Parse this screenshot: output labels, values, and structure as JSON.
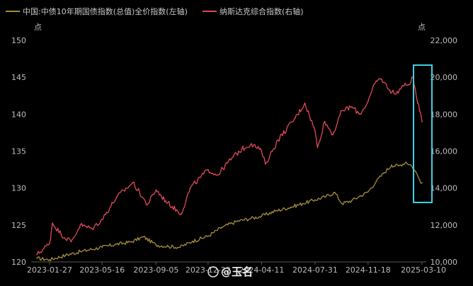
{
  "chart_data": {
    "type": "line",
    "title": "",
    "legend_placement": "top-left",
    "grid": false,
    "left_axis": {
      "unit": "点",
      "ylim": [
        120,
        150
      ],
      "ticks": [
        "120",
        "125",
        "130",
        "135",
        "140",
        "145",
        "150"
      ]
    },
    "right_axis": {
      "unit": "点",
      "ylim": [
        10000,
        22000
      ],
      "ticks": [
        "10,000",
        "12,000",
        "14,000",
        "16,000",
        "18,000",
        "20,000",
        "22,000"
      ]
    },
    "x_ticks": [
      "2023-01-27",
      "2023-05-16",
      "2023-09-05",
      "2023-12-22",
      "2024-04-11",
      "2024-07-31",
      "2024-11-18",
      "2025-03-10"
    ],
    "series": [
      {
        "name": "中国:中债10年期国债指数(总值)全价指数(左轴)",
        "axis": "left",
        "color": "#a38d3c",
        "x": [
          "2023-01-01",
          "2023-01-27",
          "2023-03-01",
          "2023-04-01",
          "2023-05-16",
          "2023-06-15",
          "2023-07-15",
          "2023-08-10",
          "2023-09-05",
          "2023-10-01",
          "2023-10-25",
          "2023-11-20",
          "2023-12-22",
          "2024-01-20",
          "2024-02-20",
          "2024-03-20",
          "2024-04-11",
          "2024-05-10",
          "2024-06-10",
          "2024-07-05",
          "2024-07-31",
          "2024-08-20",
          "2024-09-10",
          "2024-09-25",
          "2024-10-15",
          "2024-11-01",
          "2024-11-18",
          "2024-12-05",
          "2024-12-20",
          "2025-01-06",
          "2025-01-20",
          "2025-02-05",
          "2025-02-15",
          "2025-02-25",
          "2025-03-05",
          "2025-03-10"
        ],
        "values": [
          120.5,
          120.3,
          120.9,
          121.4,
          122.0,
          122.4,
          122.7,
          123.4,
          122.3,
          122.1,
          122.0,
          122.8,
          123.5,
          124.7,
          125.5,
          125.9,
          126.2,
          126.9,
          127.4,
          127.9,
          128.4,
          128.8,
          129.4,
          127.9,
          128.3,
          128.9,
          129.5,
          130.9,
          132.0,
          133.1,
          133.0,
          133.5,
          133.1,
          132.2,
          131.1,
          130.7
        ]
      },
      {
        "name": "纳斯达克综合指数(右轴)",
        "axis": "right",
        "color": "#e0495a",
        "x": [
          "2023-01-01",
          "2023-01-27",
          "2023-02-02",
          "2023-02-20",
          "2023-03-13",
          "2023-04-01",
          "2023-04-25",
          "2023-05-16",
          "2023-06-15",
          "2023-07-19",
          "2023-08-18",
          "2023-09-05",
          "2023-09-25",
          "2023-10-27",
          "2023-11-15",
          "2023-12-22",
          "2024-01-10",
          "2024-02-12",
          "2024-03-01",
          "2024-03-21",
          "2024-04-11",
          "2024-04-19",
          "2024-05-15",
          "2024-06-20",
          "2024-07-10",
          "2024-07-31",
          "2024-08-05",
          "2024-08-20",
          "2024-09-06",
          "2024-09-25",
          "2024-10-15",
          "2024-11-01",
          "2024-11-18",
          "2024-12-05",
          "2024-12-16",
          "2025-01-02",
          "2025-01-15",
          "2025-01-27",
          "2025-02-10",
          "2025-02-19",
          "2025-03-01",
          "2025-03-05",
          "2025-03-10"
        ],
        "values": [
          10400,
          11000,
          12100,
          11500,
          11100,
          12000,
          11800,
          12300,
          13500,
          14300,
          13100,
          13900,
          13300,
          12600,
          14000,
          15000,
          14700,
          15700,
          16100,
          16400,
          16000,
          15300,
          16600,
          17800,
          18600,
          17100,
          16200,
          17600,
          16900,
          18200,
          18400,
          18000,
          18700,
          19800,
          19900,
          19300,
          19100,
          19500,
          19600,
          20000,
          18600,
          18200,
          17600
        ]
      }
    ]
  },
  "watermark": {
    "text": "@玉名"
  }
}
